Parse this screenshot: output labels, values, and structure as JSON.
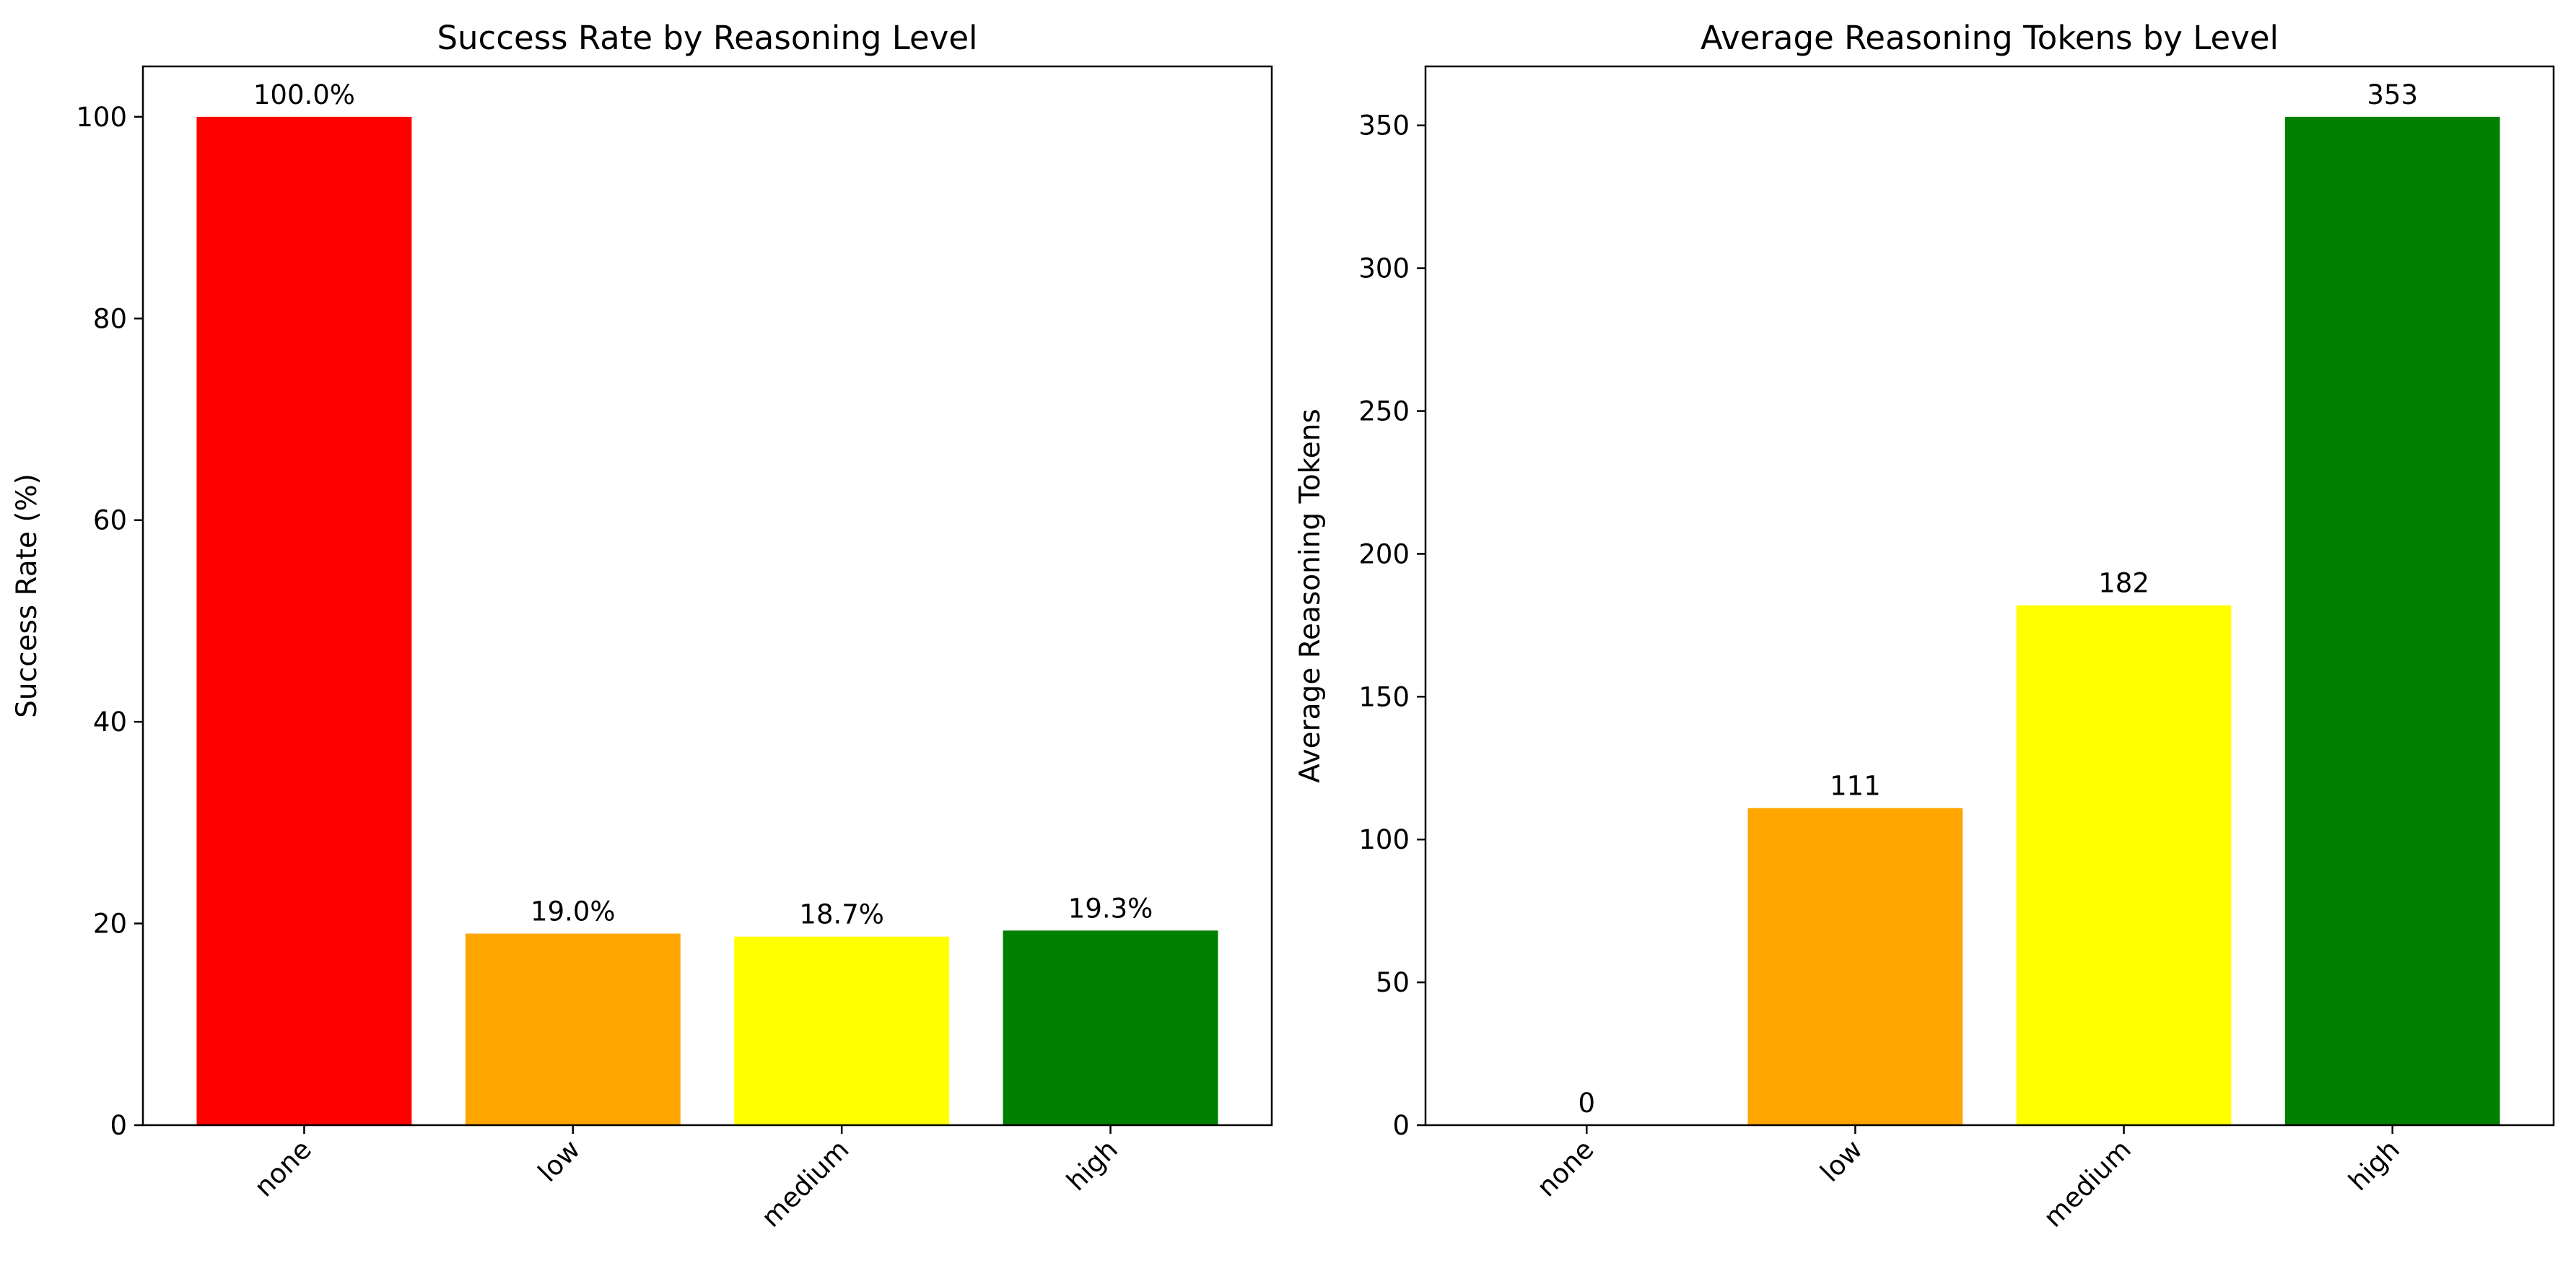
{
  "chart_data": [
    {
      "type": "bar",
      "title": "Success Rate by Reasoning Level",
      "xlabel": "",
      "ylabel": "Success Rate (%)",
      "categories": [
        "none",
        "low",
        "medium",
        "high"
      ],
      "values": [
        100.0,
        19.0,
        18.7,
        19.3
      ],
      "value_labels": [
        "100.0%",
        "19.0%",
        "18.7%",
        "19.3%"
      ],
      "colors": [
        "#ff0000",
        "#ffa500",
        "#ffff00",
        "#008000"
      ],
      "ylim": [
        0,
        105
      ],
      "yticks": [
        0,
        20,
        40,
        60,
        80,
        100
      ],
      "ytick_labels": [
        "0",
        "20",
        "40",
        "60",
        "80",
        "100"
      ],
      "grid": false,
      "xtick_rotation": 45
    },
    {
      "type": "bar",
      "title": "Average Reasoning Tokens by Level",
      "xlabel": "",
      "ylabel": "Average Reasoning Tokens",
      "categories": [
        "none",
        "low",
        "medium",
        "high"
      ],
      "values": [
        0,
        111,
        182,
        353
      ],
      "value_labels": [
        "0",
        "111",
        "182",
        "353"
      ],
      "colors": [
        "#ff0000",
        "#ffa500",
        "#ffff00",
        "#008000"
      ],
      "ylim": [
        0,
        370.65
      ],
      "yticks": [
        0,
        50,
        100,
        150,
        200,
        250,
        300,
        350
      ],
      "ytick_labels": [
        "0",
        "50",
        "100",
        "150",
        "200",
        "250",
        "300",
        "350"
      ],
      "grid": false,
      "xtick_rotation": 45
    }
  ]
}
